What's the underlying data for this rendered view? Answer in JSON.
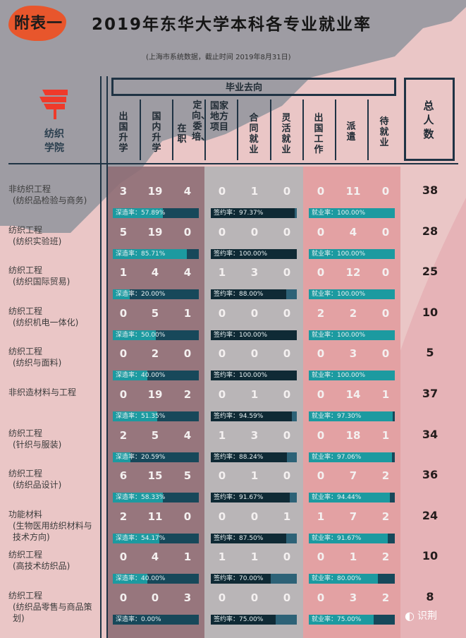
{
  "header": {
    "badge": "附表一",
    "title": "2019年东华大学本科各专业就业率",
    "subtitle": "(上海市系统数据，截止时间 2019年8月31日)"
  },
  "college": {
    "logo_icon": "red-paint-logo-icon",
    "name_line1": "纺织",
    "name_line2": "学院"
  },
  "table": {
    "group_label": "毕业去向",
    "total_label": "总人数",
    "columns": [
      {
        "key": "abroad_study",
        "label": "出国升学"
      },
      {
        "key": "domestic_study",
        "label": "国内升学"
      },
      {
        "key": "in_service",
        "label": "在职"
      },
      {
        "key": "directed",
        "label": "定向、委培、"
      },
      {
        "key": "national_project",
        "label": "国家地方项目"
      },
      {
        "key": "contract",
        "label": "合同就业"
      },
      {
        "key": "flexible",
        "label": "灵活就业"
      },
      {
        "key": "abroad_work",
        "label": "出国工作"
      },
      {
        "key": "dispatch",
        "label": "派遣"
      },
      {
        "key": "pending",
        "label": "待就业"
      }
    ],
    "rate_labels": {
      "deep": "深造率",
      "sign": "签约率",
      "emp": "就业率"
    },
    "rows": [
      {
        "major": "非纺织工程",
        "sub": "(纺织品检验与商务)",
        "vals": [
          "3",
          "19",
          "4",
          "0",
          "1",
          "0",
          "0",
          "11",
          "0"
        ],
        "deep": "深造率：57.89%",
        "deep_pct": 57.89,
        "sign": "签约率：97.37%",
        "sign_pct": 97.37,
        "emp": "就业率：100.00%",
        "emp_pct": 100,
        "total": "38"
      },
      {
        "major": "纺织工程",
        "sub": "(纺织实验班)",
        "vals": [
          "5",
          "19",
          "0",
          "0",
          "0",
          "0",
          "0",
          "4",
          "0"
        ],
        "deep": "深造率：85.71%",
        "deep_pct": 85.71,
        "sign": "签约率：100.00%",
        "sign_pct": 100,
        "emp": "就业率：100.00%",
        "emp_pct": 100,
        "total": "28"
      },
      {
        "major": "纺织工程",
        "sub": "(纺织国际贸易)",
        "vals": [
          "1",
          "4",
          "4",
          "1",
          "3",
          "0",
          "0",
          "12",
          "0"
        ],
        "deep": "深造率：20.00%",
        "deep_pct": 20,
        "sign": "签约率：88.00%",
        "sign_pct": 88,
        "emp": "就业率：100.00%",
        "emp_pct": 100,
        "total": "25"
      },
      {
        "major": "纺织工程",
        "sub": "(纺织机电一体化)",
        "vals": [
          "0",
          "5",
          "1",
          "0",
          "0",
          "0",
          "2",
          "2",
          "0"
        ],
        "deep": "深造率：50.00%",
        "deep_pct": 50,
        "sign": "签约率：100.00%",
        "sign_pct": 100,
        "emp": "就业率：100.00%",
        "emp_pct": 100,
        "total": "10"
      },
      {
        "major": "纺织工程",
        "sub": "(纺织与面料)",
        "vals": [
          "0",
          "2",
          "0",
          "0",
          "0",
          "0",
          "0",
          "3",
          "0"
        ],
        "deep": "深造率：40.00%",
        "deep_pct": 40,
        "sign": "签约率：100.00%",
        "sign_pct": 100,
        "emp": "就业率：100.00%",
        "emp_pct": 100,
        "total": "5"
      },
      {
        "major": "非织造材料与工程",
        "sub": "",
        "vals": [
          "0",
          "19",
          "2",
          "0",
          "1",
          "0",
          "0",
          "14",
          "1"
        ],
        "deep": "深造率：51.35%",
        "deep_pct": 51.35,
        "sign": "签约率：94.59%",
        "sign_pct": 94.59,
        "emp": "就业率：97.30%",
        "emp_pct": 97.3,
        "total": "37"
      },
      {
        "major": "纺织工程",
        "sub": "(针织与服装)",
        "vals": [
          "2",
          "5",
          "4",
          "1",
          "3",
          "0",
          "0",
          "18",
          "1"
        ],
        "deep": "深造率：20.59%",
        "deep_pct": 20.59,
        "sign": "签约率：88.24%",
        "sign_pct": 88.24,
        "emp": "就业率：97.06%",
        "emp_pct": 97.06,
        "total": "34"
      },
      {
        "major": "纺织工程",
        "sub": "(纺织品设计)",
        "vals": [
          "6",
          "15",
          "5",
          "0",
          "1",
          "0",
          "0",
          "7",
          "2"
        ],
        "deep": "深造率：58.33%",
        "deep_pct": 58.33,
        "sign": "签约率：91.67%",
        "sign_pct": 91.67,
        "emp": "就业率：94.44%",
        "emp_pct": 94.44,
        "total": "36"
      },
      {
        "major": "功能材料",
        "sub": "(生物医用纺织材料与技术方向)",
        "vals": [
          "2",
          "11",
          "0",
          "0",
          "0",
          "1",
          "1",
          "7",
          "2"
        ],
        "deep": "深造率：54.17%",
        "deep_pct": 54.17,
        "sign": "签约率：87.50%",
        "sign_pct": 87.5,
        "emp": "就业率：91.67%",
        "emp_pct": 91.67,
        "total": "24"
      },
      {
        "major": "纺织工程",
        "sub": "(高技术纺织品)",
        "vals": [
          "0",
          "4",
          "1",
          "1",
          "1",
          "0",
          "0",
          "1",
          "2"
        ],
        "deep": "深造率：40.00%",
        "deep_pct": 40,
        "sign": "签约率：70.00%",
        "sign_pct": 70,
        "emp": "就业率：80.00%",
        "emp_pct": 80,
        "total": "10"
      },
      {
        "major": "纺织工程",
        "sub": "(纺织品零售与商品策划)",
        "vals": [
          "0",
          "0",
          "3",
          "0",
          "0",
          "0",
          "0",
          "3",
          "2"
        ],
        "deep": "深造率：0.00%",
        "deep_pct": 0,
        "sign": "签约率：75.00%",
        "sign_pct": 75,
        "emp": "就业率：75.00%",
        "emp_pct": 75,
        "total": "8"
      }
    ]
  },
  "watermark": {
    "icon": "wechat-icon",
    "text": "识荆"
  },
  "colors": {
    "band_left": "#8f6f76",
    "band_mid": "#b9b5b7",
    "band_right": "#e3a1a3",
    "bar_dark": "#17485a",
    "bar_teal": "#1c9aa0",
    "badge": "#e8562c",
    "logo": "#ef3a2a"
  }
}
